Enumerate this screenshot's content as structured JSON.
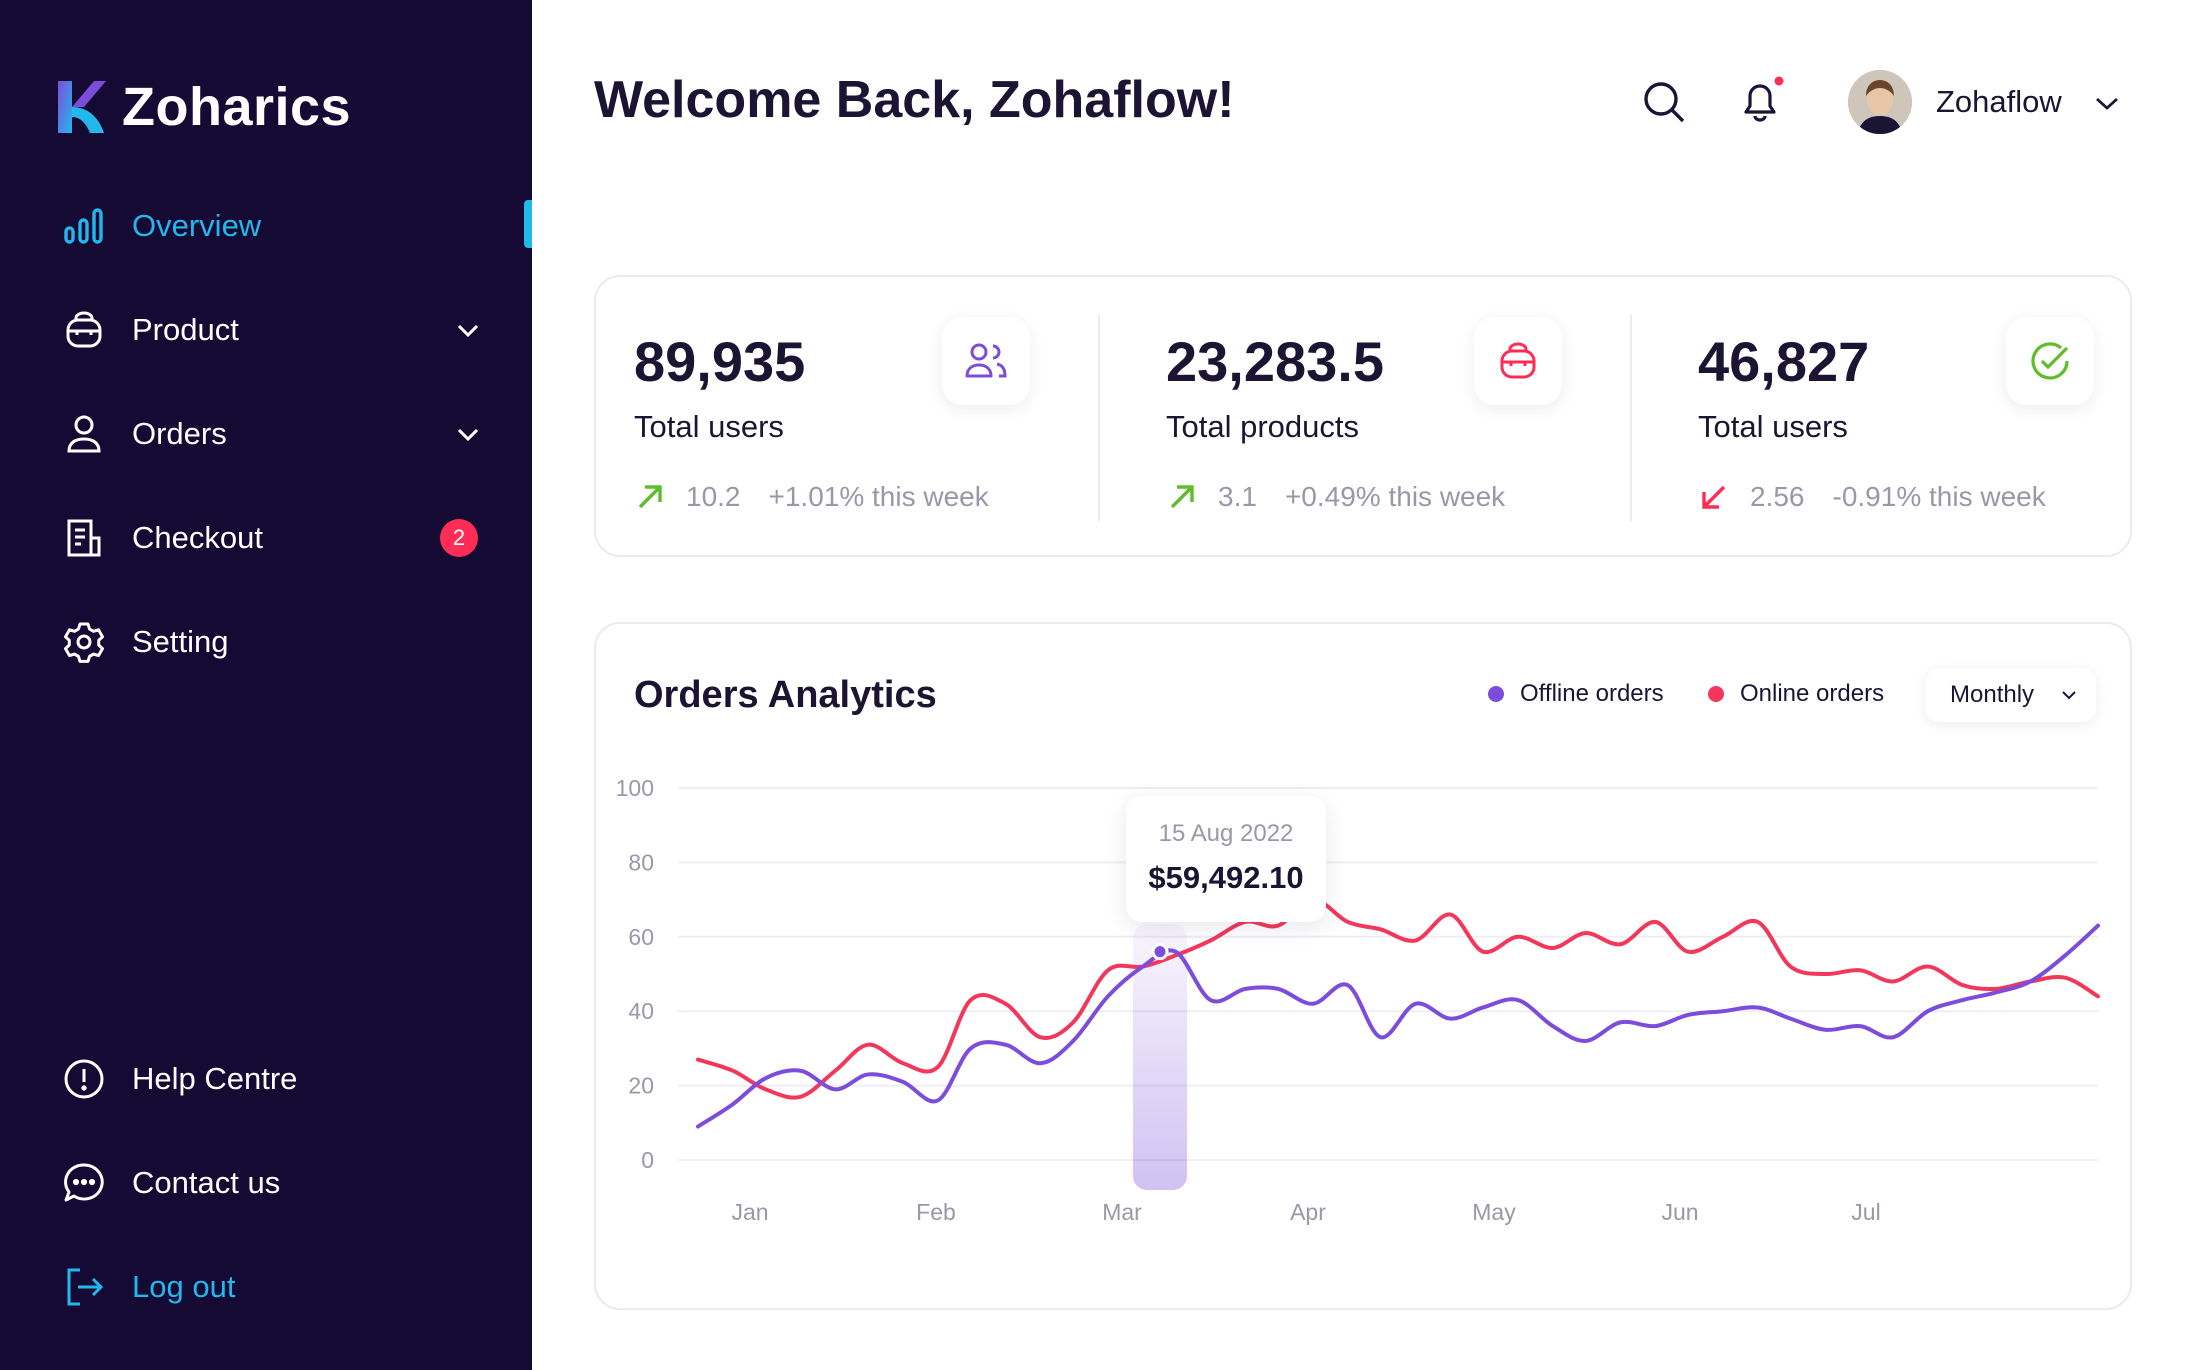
{
  "app": {
    "name": "Zoharics"
  },
  "sidebar": {
    "items": [
      {
        "label": "Overview",
        "icon": "bar-chart-icon",
        "active": true
      },
      {
        "label": "Product",
        "icon": "bag-icon",
        "has_submenu": true
      },
      {
        "label": "Orders",
        "icon": "user-icon",
        "has_submenu": true
      },
      {
        "label": "Checkout",
        "icon": "receipt-icon",
        "badge": "2"
      },
      {
        "label": "Setting",
        "icon": "gear-icon"
      }
    ],
    "bottom_items": [
      {
        "label": "Help Centre",
        "icon": "info-circle-icon"
      },
      {
        "label": "Contact us",
        "icon": "chat-bubble-icon"
      },
      {
        "label": "Log out",
        "icon": "logout-icon"
      }
    ]
  },
  "header": {
    "title": "Welcome Back, Zohaflow!",
    "user_name": "Zohaflow",
    "has_notification": true
  },
  "stats": [
    {
      "value": "89,935",
      "label": "Total users",
      "trend_value": "10.2",
      "trend_pct": "+1.01% this week",
      "direction": "up",
      "icon": "users-icon",
      "icon_color": "#7c4ddb"
    },
    {
      "value": "23,283.5",
      "label": "Total products",
      "trend_value": "3.1",
      "trend_pct": "+0.49% this week",
      "direction": "up",
      "icon": "bag-icon",
      "icon_color": "#ff2d55"
    },
    {
      "value": "46,827",
      "label": "Total users",
      "trend_value": "2.56",
      "trend_pct": "-0.91% this week",
      "direction": "down",
      "icon": "check-circle-icon",
      "icon_color": "#5ebd2b"
    }
  ],
  "colors": {
    "sidebar_bg": "#150a33",
    "accent": "#22b8ec",
    "offline": "#7c4ddb",
    "online": "#f2375a",
    "up": "#5ebd2b",
    "down": "#ff2d55"
  },
  "orders_analytics": {
    "title": "Orders Analytics",
    "period": "Monthly",
    "tooltip": {
      "date": "15 Aug 2022",
      "value": "$59,492.10"
    }
  },
  "chart_data": {
    "type": "line",
    "title": "Orders Analytics",
    "x_ticks": [
      "Jan",
      "Feb",
      "Mar",
      "Apr",
      "May",
      "Jun",
      "Jul"
    ],
    "y_ticks": [
      0,
      20,
      40,
      60,
      80,
      100
    ],
    "ylim": [
      0,
      100
    ],
    "grid": true,
    "legend": "top-right",
    "x": [
      0.0,
      0.17,
      0.33,
      0.5,
      0.67,
      0.83,
      1.0,
      1.17,
      1.33,
      1.5,
      1.67,
      1.83,
      2.0,
      2.17,
      2.33,
      2.5,
      2.67,
      2.83,
      3.0,
      3.17,
      3.33,
      3.5,
      3.67,
      3.83,
      4.0,
      4.17,
      4.33,
      4.5,
      4.67,
      4.83,
      5.0,
      5.17,
      5.33,
      5.5,
      5.67,
      5.83,
      6.0,
      6.17,
      6.33,
      6.5,
      6.67,
      6.83
    ],
    "series": [
      {
        "name": "Offline orders",
        "color": "#7c4ddb",
        "values": [
          9,
          15,
          22,
          24,
          19,
          23,
          21,
          16,
          30,
          31,
          26,
          32,
          44,
          52,
          56,
          43,
          46,
          46,
          42,
          47,
          33,
          42,
          38,
          41,
          43,
          36,
          32,
          37,
          36,
          39,
          40,
          41,
          38,
          35,
          36,
          33,
          40,
          43,
          45,
          48,
          55,
          63
        ]
      },
      {
        "name": "Online orders",
        "color": "#f2375a",
        "values": [
          27,
          24,
          19,
          17,
          24,
          31,
          26,
          25,
          43,
          42,
          33,
          37,
          51,
          52,
          55,
          59,
          64,
          63,
          70,
          64,
          62,
          59,
          66,
          56,
          60,
          57,
          61,
          58,
          64,
          56,
          60,
          64,
          52,
          50,
          51,
          48,
          52,
          47,
          46,
          48,
          49,
          44
        ]
      }
    ],
    "highlight": {
      "series": "Offline orders",
      "x_tick": "Mar",
      "date": "15 Aug 2022",
      "value": "$59,492.10"
    }
  }
}
